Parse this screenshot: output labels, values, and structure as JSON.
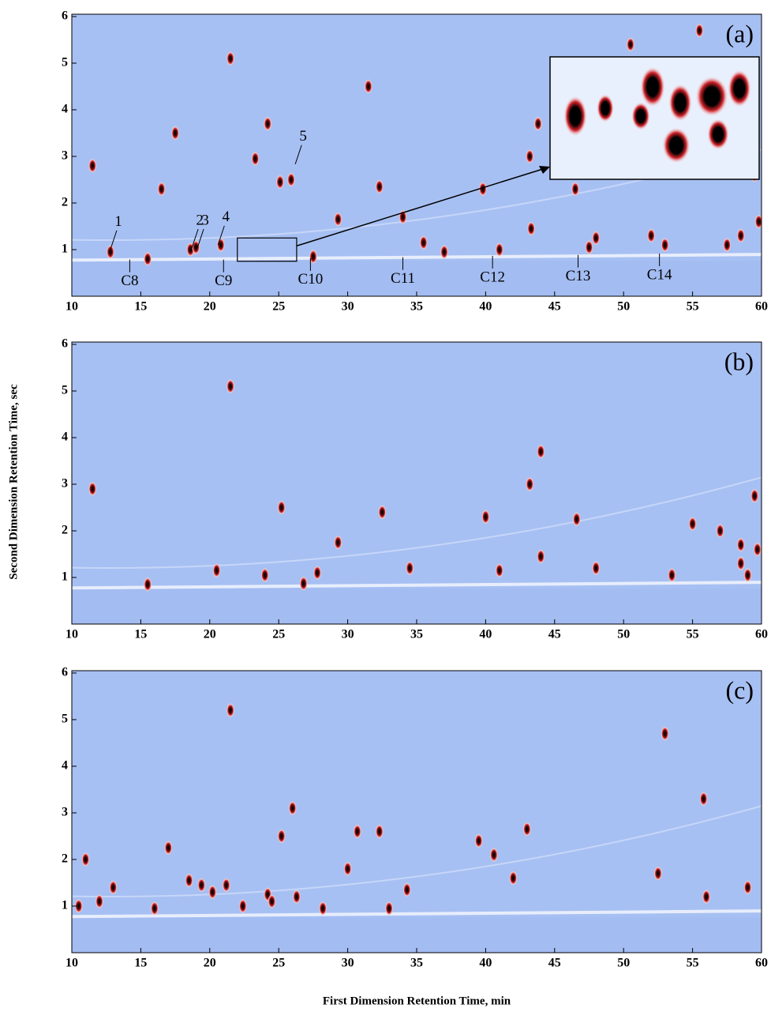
{
  "chart_data": [
    {
      "type": "scatter",
      "panel_label": "(a)",
      "ylabel": "Second Dimension Retention Time, sec",
      "xlim": [
        10,
        60
      ],
      "ylim": [
        0,
        6.05
      ],
      "xticks": [
        10,
        15,
        20,
        25,
        30,
        35,
        40,
        45,
        50,
        55,
        60
      ],
      "yticks": [
        1,
        2,
        3,
        4,
        5,
        6
      ],
      "color": "#d0242a",
      "x": [
        21.5,
        25.9,
        24.2,
        17.5,
        11.5,
        16.5,
        31.5,
        29.3,
        32.3,
        25.1,
        34,
        39.8,
        43.8,
        43.2,
        46.5,
        43.3,
        52,
        59.5,
        59.8,
        58.5,
        12.8,
        18.6,
        19.0,
        20.8,
        15.5,
        27.5,
        37,
        41,
        47.5,
        53,
        57.5,
        50.5,
        55.5,
        23.3,
        35.5,
        48
      ],
      "values": [
        5.1,
        2.5,
        3.7,
        3.5,
        2.8,
        2.3,
        4.5,
        1.65,
        2.35,
        2.45,
        1.7,
        2.3,
        3.7,
        3.0,
        2.3,
        1.45,
        1.3,
        2.6,
        1.6,
        1.3,
        0.95,
        1.0,
        1.05,
        1.1,
        0.8,
        0.85,
        0.95,
        1.0,
        1.05,
        1.1,
        1.1,
        5.4,
        5.7,
        2.95,
        1.15,
        1.25
      ],
      "annotations": [
        {
          "text": "1",
          "x": 12.8,
          "y": 0.97
        },
        {
          "text": "2",
          "x": 18.7,
          "y": 1.0
        },
        {
          "text": "3",
          "x": 19.1,
          "y": 1.0
        },
        {
          "text": "4",
          "x": 20.6,
          "y": 1.07
        },
        {
          "text": "5",
          "x": 26.2,
          "y": 2.8
        },
        {
          "text": "C8",
          "x": 14.2,
          "y": 0.82
        },
        {
          "text": "C9",
          "x": 21,
          "y": 0.82
        },
        {
          "text": "C10",
          "x": 27.3,
          "y": 0.85
        },
        {
          "text": "C11",
          "x": 34,
          "y": 0.87
        },
        {
          "text": "C12",
          "x": 40.5,
          "y": 0.9
        },
        {
          "text": "C13",
          "x": 46.7,
          "y": 0.92
        },
        {
          "text": "C14",
          "x": 52.6,
          "y": 0.95
        }
      ],
      "inset": {
        "xlim": [
          22,
          26.3
        ],
        "ylim": [
          0.75,
          1.25
        ]
      }
    },
    {
      "type": "scatter",
      "panel_label": "(b)",
      "xlim": [
        10,
        60
      ],
      "ylim": [
        0,
        6.05
      ],
      "xticks": [
        10,
        15,
        20,
        25,
        30,
        35,
        40,
        45,
        50,
        55,
        60
      ],
      "yticks": [
        1,
        2,
        3,
        4,
        5,
        6
      ],
      "color": "#d0242a",
      "x": [
        21.5,
        11.5,
        25.2,
        32.5,
        29.3,
        40,
        43.2,
        44,
        46.6,
        59.5,
        15.5,
        26.8,
        27.8,
        20.5,
        34.5,
        41,
        48,
        55,
        57,
        58.5,
        59.7,
        58.5,
        53.5,
        59,
        24,
        44
      ],
      "values": [
        5.1,
        2.9,
        2.5,
        2.4,
        1.75,
        2.3,
        3.0,
        3.7,
        2.25,
        2.75,
        0.85,
        0.87,
        1.1,
        1.15,
        1.2,
        1.15,
        1.2,
        2.15,
        2.0,
        1.7,
        1.6,
        1.3,
        1.05,
        1.05,
        1.05,
        1.45
      ]
    },
    {
      "type": "scatter",
      "panel_label": "(c)",
      "xlabel": "First Dimension Retention Time, min",
      "xlim": [
        10,
        60
      ],
      "ylim": [
        0,
        6.05
      ],
      "xticks": [
        10,
        15,
        20,
        25,
        30,
        35,
        40,
        45,
        50,
        55,
        60
      ],
      "yticks": [
        1,
        2,
        3,
        4,
        5,
        6
      ],
      "color": "#d0242a",
      "x": [
        21.5,
        53,
        55.8,
        25.2,
        26,
        30.7,
        32.3,
        43,
        17,
        11,
        21.2,
        18.5,
        19.4,
        20.2,
        24.2,
        24.5,
        26.3,
        30,
        34.3,
        13,
        10.5,
        12,
        16,
        22.4,
        28.2,
        33,
        39.5,
        42,
        56,
        59,
        52.5,
        40.6
      ],
      "values": [
        5.2,
        4.7,
        3.3,
        2.5,
        3.1,
        2.6,
        2.6,
        2.65,
        2.25,
        2.0,
        1.45,
        1.55,
        1.45,
        1.3,
        1.25,
        1.1,
        1.2,
        1.8,
        1.35,
        1.4,
        1.0,
        1.1,
        0.95,
        1.0,
        0.95,
        0.95,
        2.4,
        1.6,
        1.2,
        1.4,
        1.7,
        2.1
      ]
    }
  ]
}
